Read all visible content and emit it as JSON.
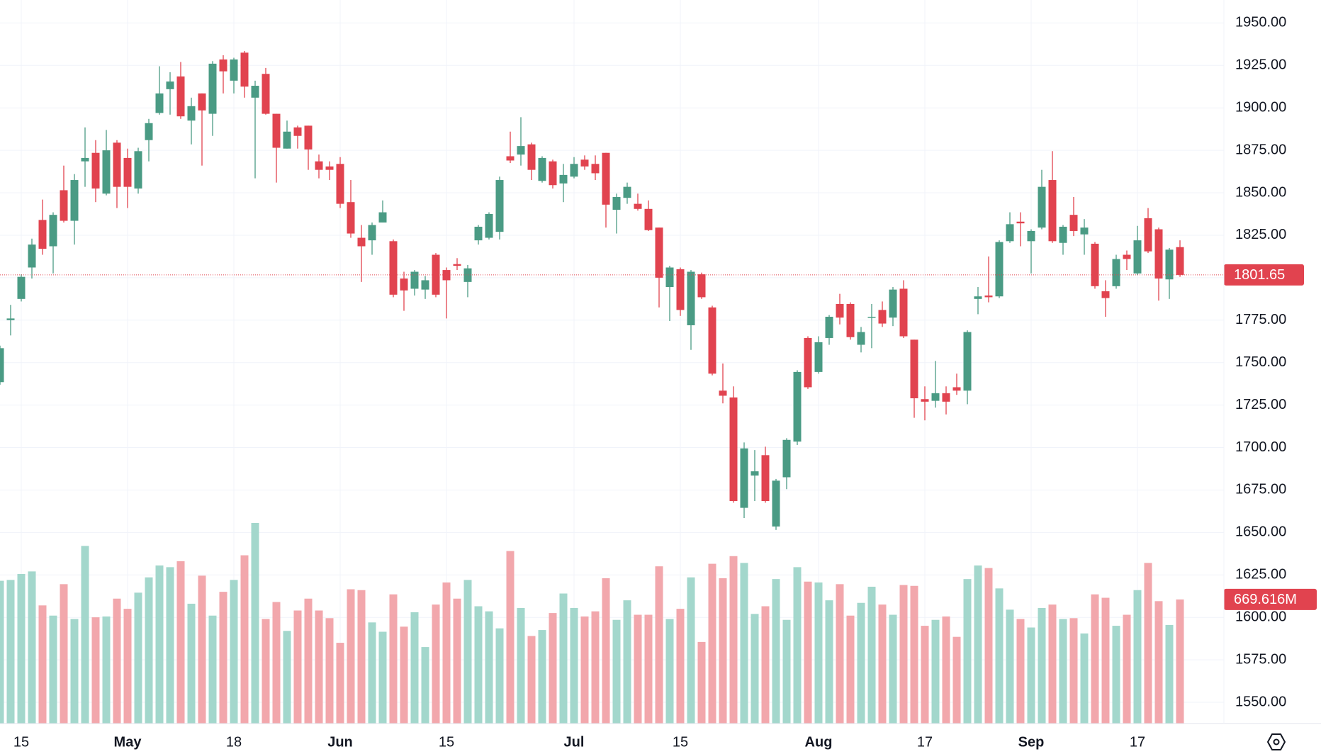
{
  "chart_data": {
    "type": "candlestick",
    "categories": [
      null,
      null,
      "15",
      null,
      null,
      null,
      null,
      null,
      null,
      null,
      null,
      null,
      "May",
      null,
      null,
      null,
      null,
      null,
      null,
      null,
      null,
      null,
      "18",
      null,
      null,
      null,
      null,
      null,
      null,
      null,
      null,
      null,
      "Jun",
      null,
      null,
      null,
      null,
      null,
      null,
      null,
      null,
      null,
      "15",
      null,
      null,
      null,
      null,
      null,
      null,
      null,
      null,
      null,
      null,
      null,
      "Jul",
      null,
      null,
      null,
      null,
      null,
      null,
      null,
      null,
      null,
      "15",
      null,
      null,
      null,
      null,
      null,
      null,
      null,
      null,
      null,
      null,
      null,
      null,
      "Aug",
      null,
      null,
      null,
      null,
      null,
      null,
      null,
      null,
      null,
      "17",
      null,
      null,
      null,
      null,
      null,
      null,
      null,
      null,
      null,
      "Sep",
      null,
      null,
      null,
      null,
      null,
      null,
      null,
      null,
      null,
      "17",
      null,
      null,
      null,
      null
    ],
    "open": [
      1738.5,
      1775,
      1787.5,
      1806,
      1834,
      1818.5,
      1851.5,
      1833.5,
      1868.5,
      1873.5,
      1849.5,
      1879.5,
      1870.5,
      1852.5,
      1881,
      1897,
      1911,
      1918.5,
      1892.5,
      1908.5,
      1896.5,
      1928.5,
      1916,
      1932.5,
      1906,
      1920,
      1896.5,
      1876,
      1888.5,
      1889.5,
      1868.5,
      1865.5,
      1867,
      1844.5,
      1823.5,
      1822,
      1832.5,
      1821.5,
      1799.5,
      1793.5,
      1793,
      1813.5,
      1804.5,
      1808,
      1797.5,
      1822,
      1823.5,
      1827,
      1871.5,
      1872.5,
      1878.5,
      1857,
      1868.5,
      1855.5,
      1859.5,
      1869.5,
      1867,
      1873.5,
      1840,
      1847,
      1843.5,
      1840.5,
      1829.5,
      1794.5,
      1805,
      1772,
      1802,
      1782.5,
      1733.5,
      1729.5,
      1664.5,
      1683.5,
      1695.5,
      1653.5,
      1682.5,
      1703.5,
      1764.5,
      1744.5,
      1764.5,
      1784.5,
      1784.5,
      1760.5,
      1776.5,
      1781,
      1776.5,
      1793.5,
      1763.5,
      1728.5,
      1727.5,
      1732,
      1735.5,
      1733.5,
      1787.5,
      1789.5,
      1789,
      1821.5,
      1833,
      1821.5,
      1829.5,
      1857.5,
      1820.5,
      1837,
      1825.5,
      1820,
      1792,
      1795,
      1813.5,
      1802.5,
      1835,
      1828.5,
      1799,
      1818
    ],
    "high": [
      1760,
      1784,
      1802,
      1823,
      1846,
      1838.5,
      1866,
      1861,
      1888.5,
      1881,
      1887,
      1881,
      1876,
      1876.5,
      1893.5,
      1924.5,
      1921,
      1927,
      1906,
      1908.5,
      1927.5,
      1931,
      1929.5,
      1933.5,
      1916,
      1923.5,
      1896.5,
      1892.5,
      1889.5,
      1889.5,
      1872.5,
      1868.5,
      1871,
      1857.5,
      1831,
      1832.5,
      1845.5,
      1822.5,
      1803.5,
      1804.5,
      1801,
      1814.5,
      1806,
      1811.5,
      1807.5,
      1831,
      1838.5,
      1859.5,
      1886,
      1894.5,
      1879.5,
      1871.5,
      1869.5,
      1867,
      1871,
      1872,
      1872,
      1873.5,
      1849.5,
      1856,
      1849.5,
      1845.5,
      1829.5,
      1807,
      1806,
      1804.5,
      1803,
      1783.5,
      1749.5,
      1736,
      1703,
      1698.5,
      1700.5,
      1681.5,
      1705.5,
      1745.5,
      1765.5,
      1765.5,
      1778,
      1790.5,
      1785.5,
      1771,
      1784.5,
      1786,
      1794.5,
      1798.5,
      1763.5,
      1736,
      1751,
      1736,
      1743.5,
      1769,
      1794.5,
      1812.5,
      1822,
      1838.5,
      1838.5,
      1828.5,
      1863.5,
      1874.5,
      1831,
      1847.5,
      1834.5,
      1821,
      1798.5,
      1813.5,
      1816,
      1830.5,
      1841,
      1829.5,
      1817.5,
      1822
    ],
    "low": [
      1737,
      1766,
      1786,
      1799.5,
      1813.5,
      1802.5,
      1832.5,
      1819.5,
      1853.5,
      1844.5,
      1848.5,
      1841,
      1841,
      1849.5,
      1868.5,
      1896,
      1896,
      1893.5,
      1878.5,
      1866,
      1883.5,
      1908.5,
      1908.5,
      1906,
      1858.5,
      1896,
      1856,
      1876,
      1876,
      1863.5,
      1858.5,
      1857.5,
      1841,
      1823.5,
      1797.5,
      1813.5,
      1832.5,
      1788.5,
      1780.5,
      1789.5,
      1787.5,
      1788.5,
      1776,
      1804.5,
      1788.5,
      1819.5,
      1822.5,
      1822.5,
      1867.5,
      1866,
      1857.5,
      1856,
      1852.5,
      1844.5,
      1858.5,
      1863.5,
      1857.5,
      1829.5,
      1826,
      1843.5,
      1839.5,
      1827.5,
      1782.5,
      1774.5,
      1777.5,
      1757.5,
      1787.5,
      1742.5,
      1726,
      1667.5,
      1658.5,
      1668.5,
      1667.5,
      1651.5,
      1675.5,
      1701.5,
      1734.5,
      1743.5,
      1760.5,
      1772.5,
      1763.5,
      1756,
      1758.5,
      1771,
      1771.5,
      1764.5,
      1717.5,
      1716,
      1723.5,
      1719.5,
      1731,
      1725.5,
      1778.5,
      1785.5,
      1788,
      1820.5,
      1818.5,
      1802.5,
      1828.5,
      1820.5,
      1813.5,
      1824.5,
      1813.5,
      1793.5,
      1777,
      1793.5,
      1804.5,
      1801.5,
      1814.5,
      1786.5,
      1787.5,
      1800.5
    ],
    "close": [
      1758.5,
      1776,
      1800.5,
      1819.5,
      1817,
      1837,
      1833.5,
      1857.5,
      1870.5,
      1852.5,
      1875,
      1853.5,
      1853.5,
      1874.5,
      1891,
      1908.5,
      1915.5,
      1895,
      1901,
      1898.5,
      1926,
      1921.5,
      1928.5,
      1912.5,
      1913,
      1896.5,
      1876.5,
      1886,
      1883.5,
      1875.5,
      1863.5,
      1863.5,
      1843.5,
      1826,
      1818.5,
      1831,
      1838.5,
      1790,
      1792.5,
      1803.5,
      1798.5,
      1790,
      1798.5,
      1807,
      1805.5,
      1830,
      1837.5,
      1857.5,
      1869,
      1877.5,
      1863.5,
      1870.5,
      1854.5,
      1860.5,
      1867,
      1865.5,
      1861.5,
      1843,
      1847.5,
      1853.5,
      1840.5,
      1828,
      1800,
      1806,
      1781,
      1803.5,
      1788.5,
      1743.5,
      1730.5,
      1668.5,
      1699.5,
      1686,
      1668.5,
      1680.5,
      1704.5,
      1744.5,
      1735.5,
      1762,
      1777,
      1776.5,
      1765,
      1768,
      1777,
      1773,
      1793,
      1765.5,
      1729,
      1727,
      1732,
      1727,
      1733.5,
      1768,
      1789,
      1788.5,
      1821,
      1831.5,
      1832,
      1827.5,
      1853.5,
      1821.5,
      1830,
      1827.5,
      1829.5,
      1795,
      1788,
      1811,
      1811,
      1822,
      1815.5,
      1799.5,
      1816.5,
      1801.65
    ],
    "volume": {
      "values": [
        770.4,
        775.0,
        807.1,
        820.9,
        637.5,
        582.4,
        752.1,
        564.1,
        958.5,
        573.3,
        577.8,
        674.1,
        619.1,
        706.2,
        788.8,
        853.0,
        843.8,
        875.9,
        646.6,
        798.0,
        582.4,
        710.8,
        775.0,
        908.0,
        1082.3,
        564.1,
        655.8,
        499.9,
        609.9,
        674.1,
        609.9,
        568.7,
        435.7,
        724.6,
        720.0,
        545.7,
        495.3,
        697.1,
        522.8,
        600.8,
        412.7,
        642.0,
        761.3,
        674.1,
        775.0,
        632.9,
        605.4,
        513.6,
        930.9,
        623.7,
        472.4,
        504.5,
        596.2,
        701.7,
        623.7,
        577.8,
        605.4,
        784.2,
        559.5,
        665.0,
        587.0,
        587.0,
        848.4,
        564.1,
        619.1,
        788.8,
        440.3,
        862.2,
        784.2,
        903.4,
        866.8,
        591.6,
        632.9,
        779.6,
        559.5,
        843.8,
        765.9,
        761.3,
        665.0,
        752.1,
        582.4,
        651.2,
        738.3,
        642.0,
        587.0,
        747.5,
        742.9,
        527.4,
        559.5,
        577.8,
        467.8,
        779.6,
        853.0,
        839.2,
        729.2,
        614.5,
        564.1,
        518.2,
        623.7,
        642.0,
        564.1,
        568.7,
        486.1,
        697.1,
        678.7,
        527.4,
        587.0,
        720.0,
        866.8,
        660.4,
        532.0,
        669.616
      ],
      "value_labels": [
        null,
        null,
        null,
        null,
        null,
        null,
        null,
        null,
        null,
        null,
        null,
        null,
        null,
        null,
        null,
        null,
        null,
        null,
        null,
        null,
        null,
        null,
        null,
        null,
        null,
        null,
        null,
        null,
        null,
        null,
        null,
        null,
        null,
        null,
        null,
        null,
        null,
        null,
        null,
        null,
        null,
        null,
        null,
        null,
        null,
        null,
        null,
        null,
        null,
        null,
        null,
        null,
        null,
        null,
        null,
        null,
        null,
        null,
        null,
        null,
        null,
        null,
        null,
        null,
        null,
        null,
        null,
        null,
        null,
        null,
        null,
        null,
        null,
        null,
        null,
        null,
        null,
        null,
        null,
        null,
        null,
        null,
        null,
        null,
        null,
        null,
        null,
        null,
        null,
        null,
        null,
        null,
        null,
        null,
        null,
        null,
        null,
        null,
        null,
        null,
        null,
        null,
        null,
        null,
        null,
        null,
        null,
        null,
        null,
        null,
        null,
        "669.616M"
      ]
    },
    "ylim": [
      1537.5,
      1963.5
    ],
    "yticks": [
      {
        "value": 1550,
        "label": "1550.00"
      },
      {
        "value": 1575,
        "label": "1575.00"
      },
      {
        "value": 1600,
        "label": "1600.00"
      },
      {
        "value": 1625,
        "label": "1625.00"
      },
      {
        "value": 1650,
        "label": "1650.00"
      },
      {
        "value": 1675,
        "label": "1675.00"
      },
      {
        "value": 1700,
        "label": "1700.00"
      },
      {
        "value": 1725,
        "label": "1725.00"
      },
      {
        "value": 1750,
        "label": "1750.00"
      },
      {
        "value": 1775,
        "label": "1775.00"
      },
      {
        "value": 1800,
        "label": "1800.00"
      },
      {
        "value": 1825,
        "label": "1825.00"
      },
      {
        "value": 1850,
        "label": "1850.00"
      },
      {
        "value": 1875,
        "label": "1875.00"
      },
      {
        "value": 1900,
        "label": "1900.00"
      },
      {
        "value": 1925,
        "label": "1925.00"
      },
      {
        "value": 1950,
        "label": "1950.00"
      }
    ],
    "grid": true,
    "up_color": "#4a9b84",
    "down_color": "#e1434f",
    "volume_up_color": "#a3d7cc",
    "volume_down_color": "#f2a7ac"
  }
}
